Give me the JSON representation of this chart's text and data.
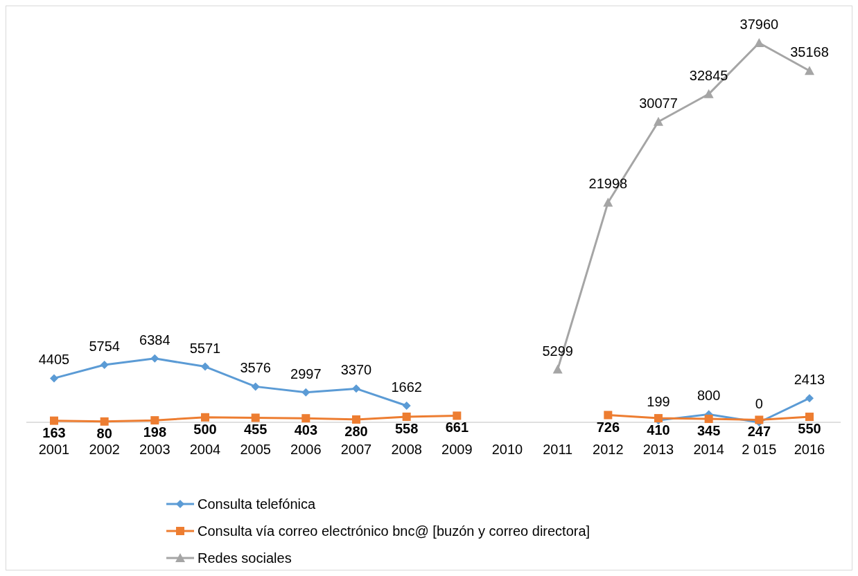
{
  "chart_data": {
    "type": "line",
    "categories": [
      "2001",
      "2002",
      "2003",
      "2004",
      "2005",
      "2006",
      "2007",
      "2008",
      "2009",
      "2010",
      "2011",
      "2012",
      "2013",
      "2014",
      "2 015",
      "2016"
    ],
    "series": [
      {
        "name": "Consulta telefónica",
        "color": "#5b9bd5",
        "marker": "diamond",
        "values": [
          4405,
          5754,
          6384,
          5571,
          3576,
          2997,
          3370,
          1662,
          null,
          null,
          null,
          null,
          199,
          800,
          0,
          2413
        ]
      },
      {
        "name": "Consulta vía correo electrónico bnc@  [buzón y correo directora]",
        "color": "#ed7d31",
        "marker": "square",
        "values": [
          163,
          80,
          198,
          500,
          455,
          403,
          280,
          558,
          661,
          null,
          null,
          726,
          410,
          345,
          247,
          550
        ]
      },
      {
        "name": "Redes sociales",
        "color": "#a5a5a5",
        "marker": "triangle",
        "values": [
          null,
          null,
          null,
          null,
          null,
          null,
          null,
          null,
          null,
          null,
          5299,
          21998,
          30077,
          32845,
          37960,
          35168
        ]
      }
    ],
    "data_labels": true,
    "legend": "bottom"
  }
}
